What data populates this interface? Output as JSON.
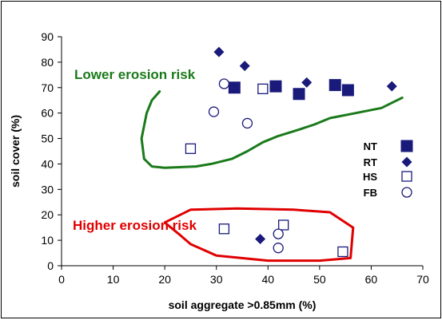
{
  "chart_data": {
    "type": "scatter",
    "xlabel": "soil aggregate >0.85mm (%)",
    "ylabel": "soil cover (%)",
    "xlim": [
      0,
      70
    ],
    "ylim": [
      0,
      90
    ],
    "x_ticks": [
      0,
      10,
      20,
      30,
      40,
      50,
      60,
      70
    ],
    "y_ticks": [
      0,
      10,
      20,
      30,
      40,
      50,
      60,
      70,
      80,
      90
    ],
    "grid": false,
    "legend_position": "right",
    "series": [
      {
        "name": "NT",
        "marker": "square-filled",
        "color": "#1a1a7a",
        "points": [
          [
            33.5,
            70
          ],
          [
            41.5,
            70.5
          ],
          [
            46,
            67.5
          ],
          [
            53,
            71
          ],
          [
            55.5,
            69
          ]
        ]
      },
      {
        "name": "RT",
        "marker": "diamond-filled",
        "color": "#1a1a7a",
        "points": [
          [
            30.5,
            84
          ],
          [
            35.5,
            78.5
          ],
          [
            47.5,
            72
          ],
          [
            64,
            70.5
          ],
          [
            38.5,
            10.5
          ]
        ]
      },
      {
        "name": "HS",
        "marker": "square-open",
        "color": "#1a1a7a",
        "points": [
          [
            25,
            46
          ],
          [
            39,
            69.5
          ],
          [
            31.5,
            14.5
          ],
          [
            43,
            16
          ],
          [
            54.5,
            5.5
          ]
        ]
      },
      {
        "name": "FB",
        "marker": "circle-open",
        "color": "#1a1a7a",
        "points": [
          [
            31.5,
            71.5
          ],
          [
            29.5,
            60.5
          ],
          [
            36,
            56
          ],
          [
            42,
            12.5
          ],
          [
            42,
            7
          ]
        ]
      }
    ],
    "annotations": [
      {
        "text": "Lower erosion risk",
        "color": "#1a7a1a",
        "boundary": [
          [
            19,
            68.5
          ],
          [
            17.5,
            65
          ],
          [
            16.5,
            60
          ],
          [
            15.5,
            50
          ],
          [
            16,
            42
          ],
          [
            17.5,
            39
          ],
          [
            20,
            38.5
          ],
          [
            26,
            39
          ],
          [
            29,
            40
          ],
          [
            33,
            42
          ],
          [
            36,
            45
          ],
          [
            39,
            48.5
          ],
          [
            42,
            51
          ],
          [
            46,
            53.5
          ],
          [
            49,
            55.5
          ],
          [
            52,
            58
          ],
          [
            57,
            60
          ],
          [
            62,
            62
          ],
          [
            65,
            65
          ],
          [
            66,
            66
          ]
        ]
      },
      {
        "text": "Higher erosion risk",
        "color": "#e00000",
        "boundary": [
          [
            20,
            17
          ],
          [
            25,
            22
          ],
          [
            34,
            22.5
          ],
          [
            45,
            22
          ],
          [
            52,
            21
          ],
          [
            56.5,
            15
          ],
          [
            56,
            3
          ],
          [
            50,
            2
          ],
          [
            40,
            2
          ],
          [
            30,
            4
          ],
          [
            25,
            8.5
          ],
          [
            23,
            12
          ],
          [
            20,
            17
          ]
        ]
      }
    ]
  }
}
